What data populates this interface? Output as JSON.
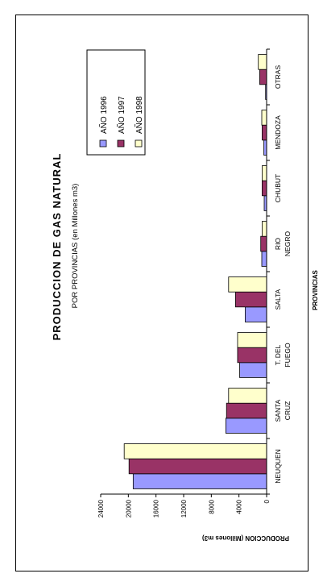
{
  "chart_data": {
    "type": "bar",
    "title": "PRODUCCION DE GAS NATURAL",
    "subtitle": "POR PROVINCIAS (en Millones m3)",
    "xlabel": "PROVINCIAS",
    "ylabel": "PRODUCCION (Millones m3)",
    "ylim": [
      0,
      24000
    ],
    "yticks": [
      0,
      4000,
      8000,
      12000,
      16000,
      20000,
      24000
    ],
    "categories": [
      {
        "lines": [
          "NEUQUEN"
        ]
      },
      {
        "lines": [
          "SANTA",
          "CRUZ"
        ]
      },
      {
        "lines": [
          "T. DEL",
          "FUEGO"
        ]
      },
      {
        "lines": [
          "SALTA"
        ]
      },
      {
        "lines": [
          "RIO",
          "NEGRO"
        ]
      },
      {
        "lines": [
          "CHUBUT"
        ]
      },
      {
        "lines": [
          "MENDOZA"
        ]
      },
      {
        "lines": [
          "OTRAS"
        ]
      }
    ],
    "series": [
      {
        "name": "AÑO 1996",
        "color": "#9999ff",
        "values": [
          19300,
          5900,
          3900,
          3100,
          700,
          350,
          400,
          150
        ]
      },
      {
        "name": "AÑO 1997",
        "color": "#993366",
        "values": [
          19900,
          5800,
          4200,
          4500,
          850,
          650,
          650,
          1000
        ]
      },
      {
        "name": "AÑO 1998",
        "color": "#ffffcc",
        "values": [
          20600,
          5500,
          4200,
          5500,
          650,
          650,
          700,
          1200
        ]
      }
    ],
    "grid": false,
    "legend_position": "top-right"
  }
}
